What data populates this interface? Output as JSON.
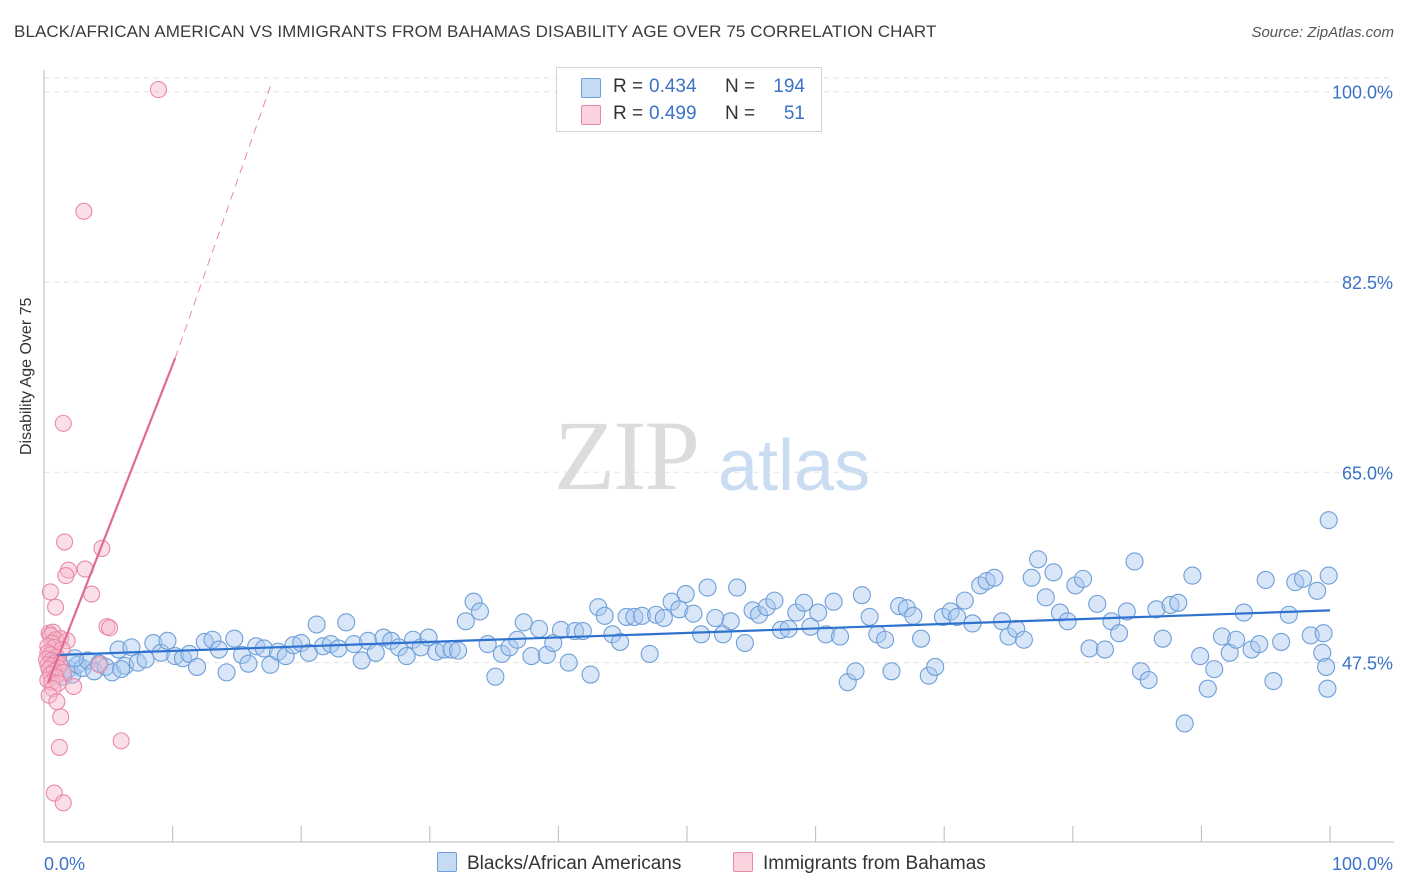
{
  "header": {
    "title": "BLACK/AFRICAN AMERICAN VS IMMIGRANTS FROM BAHAMAS DISABILITY AGE OVER 75 CORRELATION CHART",
    "source": "Source: ZipAtlas.com"
  },
  "watermark": {
    "part1": "ZIP",
    "part2": "atlas"
  },
  "legend": {
    "rows": [
      {
        "r_label": "R =",
        "r_value": "0.434",
        "n_label": "N =",
        "n_value": "194",
        "color": "#a9c8ef"
      },
      {
        "r_label": "R =",
        "r_value": "0.499",
        "n_label": "N =",
        "n_value": "51",
        "color": "#f7b9cc"
      }
    ]
  },
  "bottom_legend": {
    "series1": "Blacks/African Americans",
    "series2": "Immigrants from Bahamas"
  },
  "colors": {
    "blue_fill": "#a9c8ef",
    "blue_stroke": "#6f9fd8",
    "blue_line": "#2f73cf",
    "pink_fill": "#f7b9cc",
    "pink_stroke": "#e88aa6",
    "pink_line": "#e26a92",
    "tick_label": "#3a72c8",
    "grid": "#e0e0e0"
  },
  "chart_data": {
    "type": "scatter",
    "title": "BLACK/AFRICAN AMERICAN VS IMMIGRANTS FROM BAHAMAS DISABILITY AGE OVER 75 CORRELATION CHART",
    "xlabel": "",
    "ylabel": "Disability Age Over 75",
    "x_tick_labels": [
      "0.0%",
      "100.0%"
    ],
    "y_tick_labels": [
      "47.5%",
      "65.0%",
      "82.5%",
      "100.0%"
    ],
    "y_ticks": [
      47.5,
      65.0,
      82.5,
      100.0
    ],
    "xlim": [
      0,
      100
    ],
    "ylim": [
      31,
      102
    ],
    "grid": true,
    "legend_position": "top-center",
    "series": [
      {
        "name": "Blacks/African Americans",
        "r": 0.434,
        "n": 194,
        "trend": {
          "x": [
            1,
            100
          ],
          "y": [
            48.2,
            52.3
          ]
        },
        "points": [
          [
            0.8,
            46.8
          ],
          [
            1.2,
            47.2
          ],
          [
            1.5,
            46.2
          ],
          [
            1.9,
            46.9
          ],
          [
            2.2,
            46.4
          ],
          [
            2.6,
            47.3
          ],
          [
            3.0,
            47.0
          ],
          [
            3.4,
            47.7
          ],
          [
            3.9,
            46.7
          ],
          [
            4.3,
            47.4
          ],
          [
            4.8,
            47.1
          ],
          [
            5.3,
            46.6
          ],
          [
            5.8,
            48.7
          ],
          [
            6.3,
            47.2
          ],
          [
            6.8,
            48.9
          ],
          [
            7.3,
            47.5
          ],
          [
            7.9,
            47.8
          ],
          [
            8.5,
            49.3
          ],
          [
            9.1,
            48.4
          ],
          [
            9.6,
            49.5
          ],
          [
            10.2,
            48.1
          ],
          [
            10.8,
            47.9
          ],
          [
            11.3,
            48.3
          ],
          [
            11.9,
            47.1
          ],
          [
            12.5,
            49.4
          ],
          [
            13.1,
            49.6
          ],
          [
            13.6,
            48.7
          ],
          [
            14.2,
            46.6
          ],
          [
            14.8,
            49.7
          ],
          [
            15.4,
            48.2
          ],
          [
            15.9,
            47.4
          ],
          [
            16.5,
            49.0
          ],
          [
            17.1,
            48.8
          ],
          [
            17.6,
            47.3
          ],
          [
            18.2,
            48.5
          ],
          [
            18.8,
            48.1
          ],
          [
            19.4,
            49.1
          ],
          [
            20.0,
            49.3
          ],
          [
            20.6,
            48.4
          ],
          [
            21.2,
            51.0
          ],
          [
            21.7,
            49.0
          ],
          [
            22.3,
            49.2
          ],
          [
            22.9,
            48.8
          ],
          [
            23.5,
            51.2
          ],
          [
            24.1,
            49.2
          ],
          [
            24.7,
            47.7
          ],
          [
            25.2,
            49.5
          ],
          [
            25.8,
            48.4
          ],
          [
            26.4,
            49.8
          ],
          [
            27.0,
            49.5
          ],
          [
            27.6,
            48.9
          ],
          [
            28.2,
            48.1
          ],
          [
            28.7,
            49.6
          ],
          [
            29.3,
            48.9
          ],
          [
            29.9,
            49.8
          ],
          [
            30.5,
            48.5
          ],
          [
            31.1,
            48.7
          ],
          [
            31.7,
            48.7
          ],
          [
            32.2,
            48.6
          ],
          [
            32.8,
            51.3
          ],
          [
            33.4,
            53.1
          ],
          [
            33.9,
            52.2
          ],
          [
            34.5,
            49.2
          ],
          [
            35.1,
            46.2
          ],
          [
            35.6,
            48.3
          ],
          [
            36.2,
            48.9
          ],
          [
            36.8,
            49.6
          ],
          [
            37.3,
            51.2
          ],
          [
            37.9,
            48.1
          ],
          [
            38.5,
            50.6
          ],
          [
            39.1,
            48.2
          ],
          [
            39.6,
            49.3
          ],
          [
            40.2,
            50.5
          ],
          [
            40.8,
            47.5
          ],
          [
            41.3,
            50.4
          ],
          [
            41.9,
            50.4
          ],
          [
            42.5,
            46.4
          ],
          [
            43.1,
            52.6
          ],
          [
            43.6,
            51.8
          ],
          [
            44.2,
            50.1
          ],
          [
            44.8,
            49.4
          ],
          [
            45.3,
            51.7
          ],
          [
            45.9,
            51.7
          ],
          [
            46.5,
            51.8
          ],
          [
            47.1,
            48.3
          ],
          [
            47.6,
            51.9
          ],
          [
            48.2,
            51.6
          ],
          [
            48.8,
            53.1
          ],
          [
            49.4,
            52.4
          ],
          [
            49.9,
            53.8
          ],
          [
            50.5,
            52.0
          ],
          [
            51.1,
            50.1
          ],
          [
            51.6,
            54.4
          ],
          [
            52.2,
            51.6
          ],
          [
            52.8,
            50.1
          ],
          [
            53.4,
            51.3
          ],
          [
            53.9,
            54.4
          ],
          [
            54.5,
            49.3
          ],
          [
            55.1,
            52.3
          ],
          [
            55.6,
            51.9
          ],
          [
            56.2,
            52.6
          ],
          [
            56.8,
            53.2
          ],
          [
            57.3,
            50.5
          ],
          [
            57.9,
            50.6
          ],
          [
            58.5,
            52.1
          ],
          [
            59.1,
            53.0
          ],
          [
            59.6,
            50.8
          ],
          [
            60.2,
            52.1
          ],
          [
            60.8,
            50.1
          ],
          [
            61.4,
            53.1
          ],
          [
            61.9,
            49.9
          ],
          [
            62.5,
            45.7
          ],
          [
            63.1,
            46.7
          ],
          [
            63.6,
            53.7
          ],
          [
            64.2,
            51.7
          ],
          [
            64.8,
            50.1
          ],
          [
            65.4,
            49.6
          ],
          [
            65.9,
            46.7
          ],
          [
            66.5,
            52.7
          ],
          [
            67.1,
            52.5
          ],
          [
            67.6,
            51.8
          ],
          [
            68.2,
            49.7
          ],
          [
            68.8,
            46.3
          ],
          [
            69.3,
            47.1
          ],
          [
            69.9,
            51.7
          ],
          [
            70.5,
            52.2
          ],
          [
            71.0,
            51.7
          ],
          [
            71.6,
            53.2
          ],
          [
            72.2,
            51.1
          ],
          [
            72.8,
            54.6
          ],
          [
            73.3,
            55.0
          ],
          [
            73.9,
            55.3
          ],
          [
            74.5,
            51.3
          ],
          [
            75.0,
            49.9
          ],
          [
            75.6,
            50.6
          ],
          [
            76.2,
            49.6
          ],
          [
            76.8,
            55.3
          ],
          [
            77.3,
            57.0
          ],
          [
            77.9,
            53.5
          ],
          [
            78.5,
            55.8
          ],
          [
            79.0,
            52.1
          ],
          [
            79.6,
            51.3
          ],
          [
            80.2,
            54.6
          ],
          [
            80.8,
            55.2
          ],
          [
            81.3,
            48.8
          ],
          [
            81.9,
            52.9
          ],
          [
            82.5,
            48.7
          ],
          [
            83.0,
            51.3
          ],
          [
            83.6,
            50.2
          ],
          [
            84.2,
            52.2
          ],
          [
            84.8,
            56.8
          ],
          [
            85.3,
            46.7
          ],
          [
            85.9,
            45.9
          ],
          [
            86.5,
            52.4
          ],
          [
            87.0,
            49.7
          ],
          [
            87.6,
            52.8
          ],
          [
            88.2,
            53.0
          ],
          [
            88.7,
            41.9
          ],
          [
            89.3,
            55.5
          ],
          [
            89.9,
            48.1
          ],
          [
            90.5,
            45.1
          ],
          [
            91.0,
            46.9
          ],
          [
            91.6,
            49.9
          ],
          [
            92.2,
            48.4
          ],
          [
            92.7,
            49.6
          ],
          [
            93.3,
            52.1
          ],
          [
            93.9,
            48.7
          ],
          [
            94.5,
            49.2
          ],
          [
            95.0,
            55.1
          ],
          [
            95.6,
            45.8
          ],
          [
            96.2,
            49.4
          ],
          [
            96.8,
            51.9
          ],
          [
            97.3,
            54.9
          ],
          [
            97.9,
            55.2
          ],
          [
            98.5,
            50.0
          ],
          [
            99.0,
            54.1
          ],
          [
            99.4,
            48.4
          ],
          [
            99.7,
            47.1
          ],
          [
            99.8,
            45.1
          ],
          [
            99.9,
            60.6
          ],
          [
            99.5,
            50.2
          ],
          [
            99.9,
            55.5
          ],
          [
            2.4,
            47.9
          ],
          [
            6.0,
            46.9
          ]
        ]
      },
      {
        "name": "Immigrants from Bahamas",
        "r": 0.499,
        "n": 51,
        "trend": {
          "x": [
            0.3,
            10.2
          ],
          "y": [
            45.6,
            75.5
          ],
          "dashed_to": {
            "x": 17.6,
            "y": 100.5
          }
        },
        "points": [
          [
            8.9,
            100.2
          ],
          [
            3.1,
            89.0
          ],
          [
            1.5,
            69.5
          ],
          [
            1.6,
            58.6
          ],
          [
            4.5,
            58.0
          ],
          [
            1.9,
            56.0
          ],
          [
            3.2,
            56.1
          ],
          [
            1.7,
            55.5
          ],
          [
            0.5,
            54.0
          ],
          [
            3.7,
            53.8
          ],
          [
            0.9,
            52.6
          ],
          [
            4.9,
            50.8
          ],
          [
            5.1,
            50.7
          ],
          [
            0.4,
            50.2
          ],
          [
            0.7,
            50.3
          ],
          [
            0.5,
            50.0
          ],
          [
            1.3,
            49.7
          ],
          [
            0.9,
            49.6
          ],
          [
            1.8,
            49.5
          ],
          [
            0.6,
            49.3
          ],
          [
            0.3,
            49.0
          ],
          [
            0.8,
            48.9
          ],
          [
            1.4,
            48.7
          ],
          [
            0.3,
            48.4
          ],
          [
            0.5,
            48.2
          ],
          [
            1.0,
            48.0
          ],
          [
            0.2,
            47.8
          ],
          [
            0.6,
            47.7
          ],
          [
            0.9,
            47.5
          ],
          [
            1.2,
            47.4
          ],
          [
            0.3,
            47.3
          ],
          [
            0.6,
            47.2
          ],
          [
            1.1,
            47.0
          ],
          [
            0.4,
            46.9
          ],
          [
            0.8,
            46.7
          ],
          [
            1.5,
            46.6
          ],
          [
            0.5,
            46.4
          ],
          [
            0.9,
            46.2
          ],
          [
            0.3,
            45.9
          ],
          [
            0.6,
            45.7
          ],
          [
            1.1,
            45.6
          ],
          [
            2.3,
            45.3
          ],
          [
            4.3,
            47.3
          ],
          [
            0.7,
            45.1
          ],
          [
            0.4,
            44.5
          ],
          [
            1.0,
            43.9
          ],
          [
            1.3,
            42.5
          ],
          [
            1.2,
            39.7
          ],
          [
            6.0,
            40.3
          ],
          [
            0.8,
            35.5
          ],
          [
            1.5,
            34.6
          ]
        ]
      }
    ]
  }
}
